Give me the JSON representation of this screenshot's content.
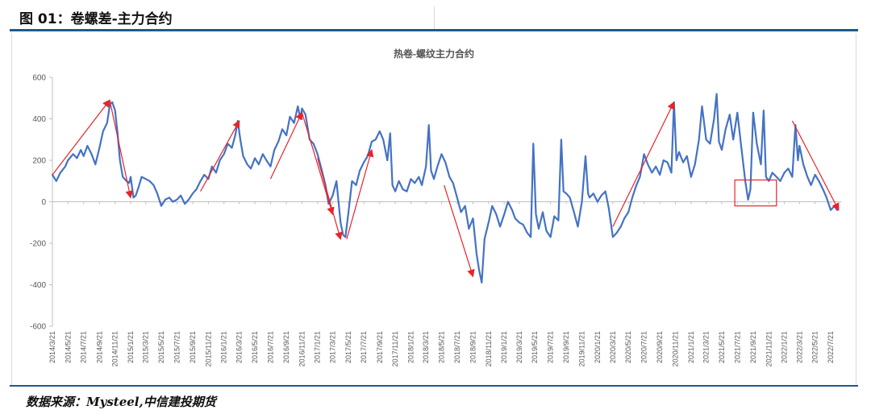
{
  "header": {
    "title": "图 01：卷螺差-主力合约"
  },
  "footer": {
    "source": "数据来源：Mysteel,中信建投期货"
  },
  "colors": {
    "line": "#4472c4",
    "arrow": "#e8232a",
    "box": "#e8232a",
    "rule": "#1f5a8c"
  },
  "chart_data": {
    "type": "line",
    "title": "热卷-螺纹主力合约",
    "xlabel": "",
    "ylabel": "",
    "ylim": [
      -600,
      600
    ],
    "yticks": [
      600,
      400,
      200,
      0,
      -200,
      -400,
      -600
    ],
    "xlim": [
      "2014-03-21",
      "2022-08-31"
    ],
    "x_tick_labels": [
      "2014/3/21",
      "2014/5/21",
      "2014/7/21",
      "2014/9/21",
      "2014/11/21",
      "2015/1/21",
      "2015/3/21",
      "2015/5/21",
      "2015/7/21",
      "2015/9/21",
      "2015/11/21",
      "2016/1/21",
      "2016/3/21",
      "2016/5/21",
      "2016/7/21",
      "2016/9/21",
      "2016/11/21",
      "2017/1/21",
      "2017/3/21",
      "2017/5/21",
      "2017/7/21",
      "2017/9/21",
      "2017/11/21",
      "2018/1/21",
      "2018/3/21",
      "2018/5/21",
      "2018/7/21",
      "2018/9/21",
      "2018/11/21",
      "2019/1/21",
      "2019/3/21",
      "2019/5/21",
      "2019/7/21",
      "2019/9/21",
      "2019/11/21",
      "2020/1/21",
      "2020/3/21",
      "2020/5/21",
      "2020/7/21",
      "2020/9/21",
      "2020/11/21",
      "2021/1/21",
      "2021/3/21",
      "2021/5/21",
      "2021/7/21",
      "2021/9/21",
      "2021/11/21",
      "2022/1/21",
      "2022/3/21",
      "2022/5/21",
      "2022/7/21"
    ],
    "series": [
      {
        "values": [
          [
            "2014-03-21",
            130
          ],
          [
            "2014-04-05",
            100
          ],
          [
            "2014-04-21",
            140
          ],
          [
            "2014-05-10",
            170
          ],
          [
            "2014-05-21",
            200
          ],
          [
            "2014-06-10",
            230
          ],
          [
            "2014-06-25",
            210
          ],
          [
            "2014-07-10",
            250
          ],
          [
            "2014-07-21",
            220
          ],
          [
            "2014-08-05",
            270
          ],
          [
            "2014-08-21",
            230
          ],
          [
            "2014-09-05",
            180
          ],
          [
            "2014-09-21",
            260
          ],
          [
            "2014-10-05",
            340
          ],
          [
            "2014-10-21",
            380
          ],
          [
            "2014-11-01",
            470
          ],
          [
            "2014-11-10",
            480
          ],
          [
            "2014-11-21",
            440
          ],
          [
            "2014-12-01",
            330
          ],
          [
            "2014-12-10",
            200
          ],
          [
            "2014-12-21",
            120
          ],
          [
            "2015-01-05",
            100
          ],
          [
            "2015-01-15",
            90
          ],
          [
            "2015-01-21",
            120
          ],
          [
            "2015-02-01",
            20
          ],
          [
            "2015-02-10",
            30
          ],
          [
            "2015-02-21",
            70
          ],
          [
            "2015-03-05",
            120
          ],
          [
            "2015-03-21",
            110
          ],
          [
            "2015-04-05",
            100
          ],
          [
            "2015-04-21",
            80
          ],
          [
            "2015-05-05",
            40
          ],
          [
            "2015-05-21",
            -20
          ],
          [
            "2015-06-05",
            10
          ],
          [
            "2015-06-21",
            20
          ],
          [
            "2015-07-05",
            0
          ],
          [
            "2015-07-21",
            10
          ],
          [
            "2015-08-05",
            30
          ],
          [
            "2015-08-21",
            -10
          ],
          [
            "2015-09-05",
            10
          ],
          [
            "2015-09-21",
            40
          ],
          [
            "2015-10-05",
            60
          ],
          [
            "2015-10-21",
            100
          ],
          [
            "2015-11-05",
            130
          ],
          [
            "2015-11-21",
            110
          ],
          [
            "2015-12-05",
            170
          ],
          [
            "2015-12-21",
            140
          ],
          [
            "2016-01-05",
            200
          ],
          [
            "2016-01-21",
            230
          ],
          [
            "2016-02-05",
            280
          ],
          [
            "2016-02-21",
            260
          ],
          [
            "2016-03-05",
            320
          ],
          [
            "2016-03-15",
            390
          ],
          [
            "2016-03-25",
            300
          ],
          [
            "2016-04-05",
            220
          ],
          [
            "2016-04-21",
            180
          ],
          [
            "2016-05-05",
            160
          ],
          [
            "2016-05-21",
            210
          ],
          [
            "2016-06-05",
            180
          ],
          [
            "2016-06-21",
            230
          ],
          [
            "2016-07-05",
            200
          ],
          [
            "2016-07-21",
            170
          ],
          [
            "2016-08-05",
            250
          ],
          [
            "2016-08-21",
            290
          ],
          [
            "2016-09-05",
            350
          ],
          [
            "2016-09-21",
            320
          ],
          [
            "2016-10-05",
            410
          ],
          [
            "2016-10-21",
            380
          ],
          [
            "2016-11-05",
            460
          ],
          [
            "2016-11-15",
            400
          ],
          [
            "2016-11-21",
            450
          ],
          [
            "2016-12-05",
            420
          ],
          [
            "2016-12-21",
            300
          ],
          [
            "2017-01-05",
            280
          ],
          [
            "2017-01-21",
            230
          ],
          [
            "2017-02-05",
            160
          ],
          [
            "2017-02-21",
            80
          ],
          [
            "2017-03-05",
            -10
          ],
          [
            "2017-03-21",
            30
          ],
          [
            "2017-04-05",
            100
          ],
          [
            "2017-04-21",
            -100
          ],
          [
            "2017-05-01",
            -160
          ],
          [
            "2017-05-10",
            -170
          ],
          [
            "2017-05-21",
            -60
          ],
          [
            "2017-06-05",
            100
          ],
          [
            "2017-06-21",
            80
          ],
          [
            "2017-07-05",
            150
          ],
          [
            "2017-07-21",
            190
          ],
          [
            "2017-08-05",
            220
          ],
          [
            "2017-08-21",
            290
          ],
          [
            "2017-09-05",
            300
          ],
          [
            "2017-09-21",
            340
          ],
          [
            "2017-10-05",
            300
          ],
          [
            "2017-10-21",
            200
          ],
          [
            "2017-11-01",
            330
          ],
          [
            "2017-11-10",
            80
          ],
          [
            "2017-11-21",
            50
          ],
          [
            "2017-12-05",
            100
          ],
          [
            "2017-12-21",
            60
          ],
          [
            "2018-01-05",
            50
          ],
          [
            "2018-01-21",
            110
          ],
          [
            "2018-02-05",
            90
          ],
          [
            "2018-02-21",
            120
          ],
          [
            "2018-03-05",
            80
          ],
          [
            "2018-03-21",
            170
          ],
          [
            "2018-04-01",
            370
          ],
          [
            "2018-04-10",
            150
          ],
          [
            "2018-04-21",
            110
          ],
          [
            "2018-05-05",
            170
          ],
          [
            "2018-05-21",
            230
          ],
          [
            "2018-06-05",
            190
          ],
          [
            "2018-06-21",
            120
          ],
          [
            "2018-07-05",
            90
          ],
          [
            "2018-07-21",
            20
          ],
          [
            "2018-08-05",
            -50
          ],
          [
            "2018-08-21",
            -20
          ],
          [
            "2018-09-05",
            -130
          ],
          [
            "2018-09-21",
            -80
          ],
          [
            "2018-10-05",
            -250
          ],
          [
            "2018-10-15",
            -330
          ],
          [
            "2018-10-25",
            -390
          ],
          [
            "2018-11-05",
            -180
          ],
          [
            "2018-11-21",
            -100
          ],
          [
            "2018-12-05",
            -20
          ],
          [
            "2018-12-21",
            -60
          ],
          [
            "2019-01-05",
            -120
          ],
          [
            "2019-01-21",
            -60
          ],
          [
            "2019-02-05",
            0
          ],
          [
            "2019-02-21",
            -40
          ],
          [
            "2019-03-05",
            -80
          ],
          [
            "2019-03-21",
            -100
          ],
          [
            "2019-04-05",
            -110
          ],
          [
            "2019-04-21",
            -150
          ],
          [
            "2019-05-05",
            -170
          ],
          [
            "2019-05-15",
            280
          ],
          [
            "2019-05-25",
            -60
          ],
          [
            "2019-06-05",
            -130
          ],
          [
            "2019-06-21",
            -50
          ],
          [
            "2019-07-05",
            -140
          ],
          [
            "2019-07-21",
            -170
          ],
          [
            "2019-08-05",
            -70
          ],
          [
            "2019-08-21",
            -90
          ],
          [
            "2019-09-01",
            300
          ],
          [
            "2019-09-10",
            50
          ],
          [
            "2019-09-21",
            40
          ],
          [
            "2019-10-05",
            20
          ],
          [
            "2019-10-21",
            -50
          ],
          [
            "2019-11-05",
            -120
          ],
          [
            "2019-11-21",
            0
          ],
          [
            "2019-12-05",
            220
          ],
          [
            "2019-12-15",
            40
          ],
          [
            "2019-12-21",
            20
          ],
          [
            "2020-01-05",
            40
          ],
          [
            "2020-01-21",
            0
          ],
          [
            "2020-02-05",
            30
          ],
          [
            "2020-02-21",
            50
          ],
          [
            "2020-03-05",
            -30
          ],
          [
            "2020-03-21",
            -170
          ],
          [
            "2020-04-05",
            -150
          ],
          [
            "2020-04-21",
            -120
          ],
          [
            "2020-05-05",
            -80
          ],
          [
            "2020-05-21",
            -50
          ],
          [
            "2020-06-05",
            20
          ],
          [
            "2020-06-21",
            80
          ],
          [
            "2020-07-05",
            120
          ],
          [
            "2020-07-21",
            230
          ],
          [
            "2020-08-05",
            180
          ],
          [
            "2020-08-21",
            140
          ],
          [
            "2020-09-05",
            170
          ],
          [
            "2020-09-21",
            130
          ],
          [
            "2020-10-05",
            200
          ],
          [
            "2020-10-21",
            190
          ],
          [
            "2020-11-05",
            140
          ],
          [
            "2020-11-15",
            480
          ],
          [
            "2020-11-25",
            200
          ],
          [
            "2020-12-05",
            240
          ],
          [
            "2020-12-21",
            190
          ],
          [
            "2021-01-05",
            220
          ],
          [
            "2021-01-21",
            120
          ],
          [
            "2021-02-05",
            180
          ],
          [
            "2021-02-21",
            300
          ],
          [
            "2021-03-05",
            460
          ],
          [
            "2021-03-21",
            300
          ],
          [
            "2021-04-05",
            280
          ],
          [
            "2021-04-21",
            400
          ],
          [
            "2021-05-01",
            520
          ],
          [
            "2021-05-10",
            290
          ],
          [
            "2021-05-21",
            250
          ],
          [
            "2021-06-05",
            350
          ],
          [
            "2021-06-21",
            420
          ],
          [
            "2021-07-05",
            300
          ],
          [
            "2021-07-21",
            430
          ],
          [
            "2021-08-05",
            270
          ],
          [
            "2021-08-21",
            100
          ],
          [
            "2021-09-01",
            10
          ],
          [
            "2021-09-10",
            60
          ],
          [
            "2021-09-21",
            430
          ],
          [
            "2021-10-05",
            280
          ],
          [
            "2021-10-21",
            180
          ],
          [
            "2021-11-01",
            440
          ],
          [
            "2021-11-10",
            120
          ],
          [
            "2021-11-21",
            100
          ],
          [
            "2021-12-05",
            140
          ],
          [
            "2021-12-21",
            120
          ],
          [
            "2022-01-05",
            100
          ],
          [
            "2022-01-21",
            140
          ],
          [
            "2022-02-05",
            160
          ],
          [
            "2022-02-21",
            120
          ],
          [
            "2022-03-05",
            370
          ],
          [
            "2022-03-15",
            200
          ],
          [
            "2022-03-21",
            270
          ],
          [
            "2022-04-05",
            180
          ],
          [
            "2022-04-21",
            120
          ],
          [
            "2022-05-05",
            80
          ],
          [
            "2022-05-21",
            130
          ],
          [
            "2022-06-05",
            100
          ],
          [
            "2022-06-21",
            60
          ],
          [
            "2022-07-05",
            20
          ],
          [
            "2022-07-21",
            -40
          ],
          [
            "2022-08-05",
            -20
          ],
          [
            "2022-08-15",
            -40
          ]
        ]
      }
    ],
    "arrows": [
      [
        [
          "2014-03-21",
          130
        ],
        [
          "2014-10-31",
          490
        ]
      ],
      [
        [
          "2014-10-31",
          490
        ],
        [
          "2015-01-21",
          20
        ]
      ],
      [
        [
          "2015-10-21",
          50
        ],
        [
          "2016-03-21",
          390
        ]
      ],
      [
        [
          "2016-07-21",
          110
        ],
        [
          "2016-11-21",
          430
        ]
      ],
      [
        [
          "2016-11-21",
          430
        ],
        [
          "2017-03-21",
          -60
        ]
      ],
      [
        [
          "2017-01-21",
          210
        ],
        [
          "2017-04-21",
          -180
        ]
      ],
      [
        [
          "2017-05-15",
          -180
        ],
        [
          "2017-08-21",
          250
        ]
      ],
      [
        [
          "2018-05-31",
          80
        ],
        [
          "2018-09-21",
          -360
        ]
      ],
      [
        [
          "2020-03-21",
          -120
        ],
        [
          "2020-11-15",
          480
        ]
      ],
      [
        [
          "2022-02-21",
          390
        ],
        [
          "2022-08-21",
          -40
        ]
      ]
    ],
    "highlight_box": {
      "x": [
        "2021-07-11",
        "2021-12-21"
      ],
      "y": [
        -20,
        105
      ]
    }
  }
}
